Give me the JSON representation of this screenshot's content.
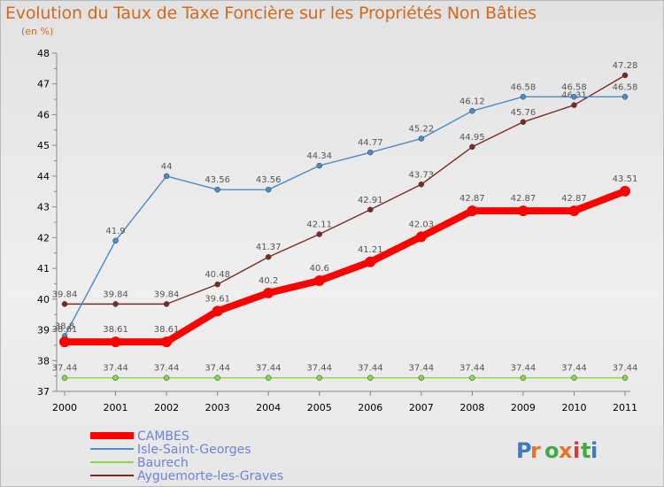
{
  "title": "Evolution du Taux de Taxe Foncière sur les Propriétés Non Bâties",
  "unit_label": "(en %)",
  "logo_text": "Proxiti",
  "chart_data": {
    "type": "line",
    "x": [
      "2000",
      "2001",
      "2002",
      "2003",
      "2004",
      "2005",
      "2006",
      "2007",
      "2008",
      "2009",
      "2010",
      "2011"
    ],
    "ylim": [
      37,
      48
    ],
    "yticks": [
      "37",
      "38",
      "39",
      "40",
      "41",
      "42",
      "43",
      "44",
      "45",
      "46",
      "47",
      "48"
    ],
    "grid": false,
    "legend_position": "bottom-left",
    "series": [
      {
        "name": "CAMBES",
        "color": "#ff0000",
        "values": [
          38.61,
          38.61,
          38.61,
          39.61,
          40.2,
          40.6,
          41.21,
          42.03,
          42.87,
          42.87,
          42.87,
          43.51
        ],
        "labels": [
          "38.61",
          "38.61",
          "38.61",
          "39.61",
          "40.2",
          "40.6",
          "41.21",
          "42.03",
          "42.87",
          "42.87",
          "42.87",
          "43.51"
        ]
      },
      {
        "name": "Isle-Saint-Georges",
        "color": "#4b8bc8",
        "values": [
          38.8,
          41.9,
          44,
          43.56,
          43.56,
          44.34,
          44.77,
          45.22,
          46.12,
          46.58,
          46.58,
          46.58
        ],
        "labels": [
          "38.8",
          "41.9",
          "44",
          "43.56",
          "43.56",
          "44.34",
          "44.77",
          "45.22",
          "46.12",
          "46.58",
          "46.58",
          "46.58"
        ]
      },
      {
        "name": "Baurech",
        "color": "#8ed54a",
        "values": [
          37.44,
          37.44,
          37.44,
          37.44,
          37.44,
          37.44,
          37.44,
          37.44,
          37.44,
          37.44,
          37.44,
          37.44
        ],
        "labels": [
          "37.44",
          "37.44",
          "37.44",
          "37.44",
          "37.44",
          "37.44",
          "37.44",
          "37.44",
          "37.44",
          "37.44",
          "37.44",
          "37.44"
        ]
      },
      {
        "name": "Ayguemorte-les-Graves",
        "color": "#7a2a2a",
        "values": [
          39.84,
          39.84,
          39.84,
          40.48,
          41.37,
          42.11,
          42.91,
          43.73,
          44.95,
          45.76,
          46.31,
          47.28
        ],
        "labels": [
          "39.84",
          "39.84",
          "39.84",
          "40.48",
          "41.37",
          "42.11",
          "42.91",
          "43.73",
          "44.95",
          "45.76",
          "46.31",
          "47.28"
        ]
      }
    ]
  }
}
